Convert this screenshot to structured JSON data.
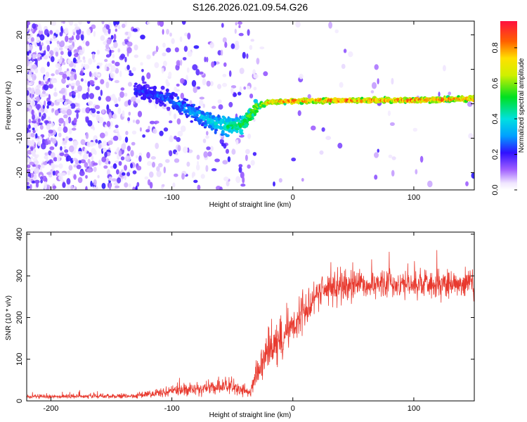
{
  "figure_title": "S126.2026.021.09.54.G26",
  "colors": {
    "axis": "#000000",
    "snr_line": "#e8392e",
    "background": "#ffffff"
  },
  "chart_data": [
    {
      "type": "heatmap",
      "title": "",
      "xlabel": "Height of straight line (km)",
      "ylabel": "Frequency (Hz)",
      "xlim": [
        -220,
        150
      ],
      "ylim": [
        -25,
        24
      ],
      "xticks": [
        -200,
        -100,
        0,
        100
      ],
      "yticks": [
        -20,
        -10,
        0,
        10,
        20
      ],
      "xtick_labels": [
        "-200",
        "-100",
        "0",
        "100"
      ],
      "ytick_labels": [
        "-20",
        "-10",
        "0",
        "10",
        "20"
      ],
      "colorbar": {
        "label": "Normalized spectral amplitude",
        "range": [
          0.0,
          0.95
        ],
        "ticks": [
          0.0,
          0.2,
          0.4,
          0.6,
          0.8
        ],
        "tick_labels": [
          "0.0",
          "0.2",
          "0.4",
          "0.6",
          "0.8"
        ],
        "colormap": "rainbow"
      },
      "ridge": {
        "x": [
          -130,
          -100,
          -80,
          -60,
          -45,
          -38,
          -30,
          -20,
          0,
          50,
          100,
          150
        ],
        "frequency": [
          4,
          1,
          -3,
          -6,
          -7,
          -5,
          -1,
          0.5,
          0.8,
          1,
          1,
          1.5
        ],
        "amplitude": [
          0.25,
          0.3,
          0.35,
          0.45,
          0.55,
          0.6,
          0.65,
          0.85,
          0.9,
          0.9,
          0.92,
          0.9
        ]
      }
    },
    {
      "type": "line",
      "title": "",
      "xlabel": "Height of straight line (km)",
      "ylabel": "SNR (10 * v/v)",
      "xlim": [
        -220,
        150
      ],
      "ylim": [
        0,
        405
      ],
      "xticks": [
        -200,
        -100,
        0,
        100
      ],
      "yticks": [
        0,
        100,
        200,
        300,
        400
      ],
      "xtick_labels": [
        "-200",
        "-100",
        "0",
        "100"
      ],
      "ytick_labels": [
        "0",
        "100",
        "200",
        "300",
        "400"
      ],
      "series": [
        {
          "name": "SNR",
          "envelope_x": [
            -220,
            -130,
            -110,
            -80,
            -50,
            -35,
            -30,
            -20,
            0,
            20,
            50,
            100,
            150
          ],
          "mean_y": [
            10,
            12,
            20,
            30,
            35,
            20,
            60,
            120,
            180,
            260,
            280,
            280,
            285
          ],
          "noise_y": [
            5,
            6,
            12,
            18,
            20,
            14,
            40,
            60,
            50,
            40,
            40,
            35,
            35
          ]
        }
      ]
    }
  ]
}
